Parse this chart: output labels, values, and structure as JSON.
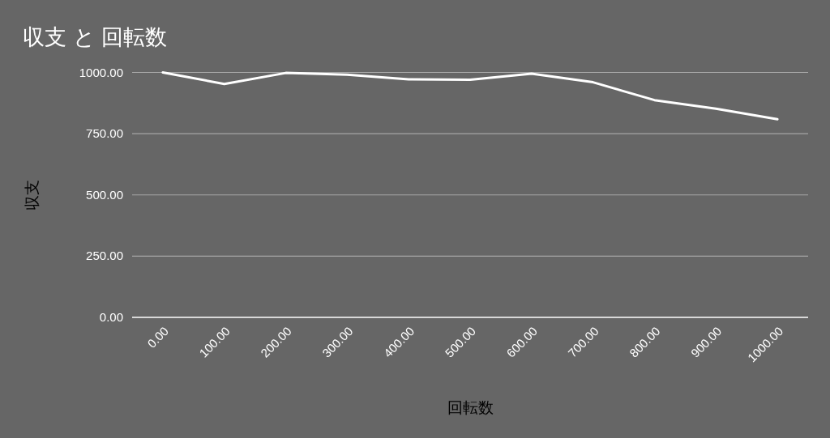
{
  "chart_data": {
    "type": "line",
    "title": "収支 と 回転数",
    "xlabel": "回転数",
    "ylabel": "収支",
    "categories": [
      "0.00",
      "100.00",
      "200.00",
      "300.00",
      "400.00",
      "500.00",
      "600.00",
      "700.00",
      "800.00",
      "900.00",
      "1000.00"
    ],
    "series": [
      {
        "color": "#ffffff",
        "values": [
          1000,
          953,
          998,
          991,
          972,
          970,
          995,
          960,
          887,
          852,
          809
        ]
      }
    ],
    "ylim": [
      0,
      1000
    ],
    "yticks": [
      {
        "value": 0,
        "label": "0.00"
      },
      {
        "value": 250,
        "label": "250.00"
      },
      {
        "value": 500,
        "label": "500.00"
      },
      {
        "value": 750,
        "label": "750.00"
      },
      {
        "value": 1000,
        "label": "1000.00"
      }
    ],
    "grid": "y",
    "line_style": "solid"
  }
}
